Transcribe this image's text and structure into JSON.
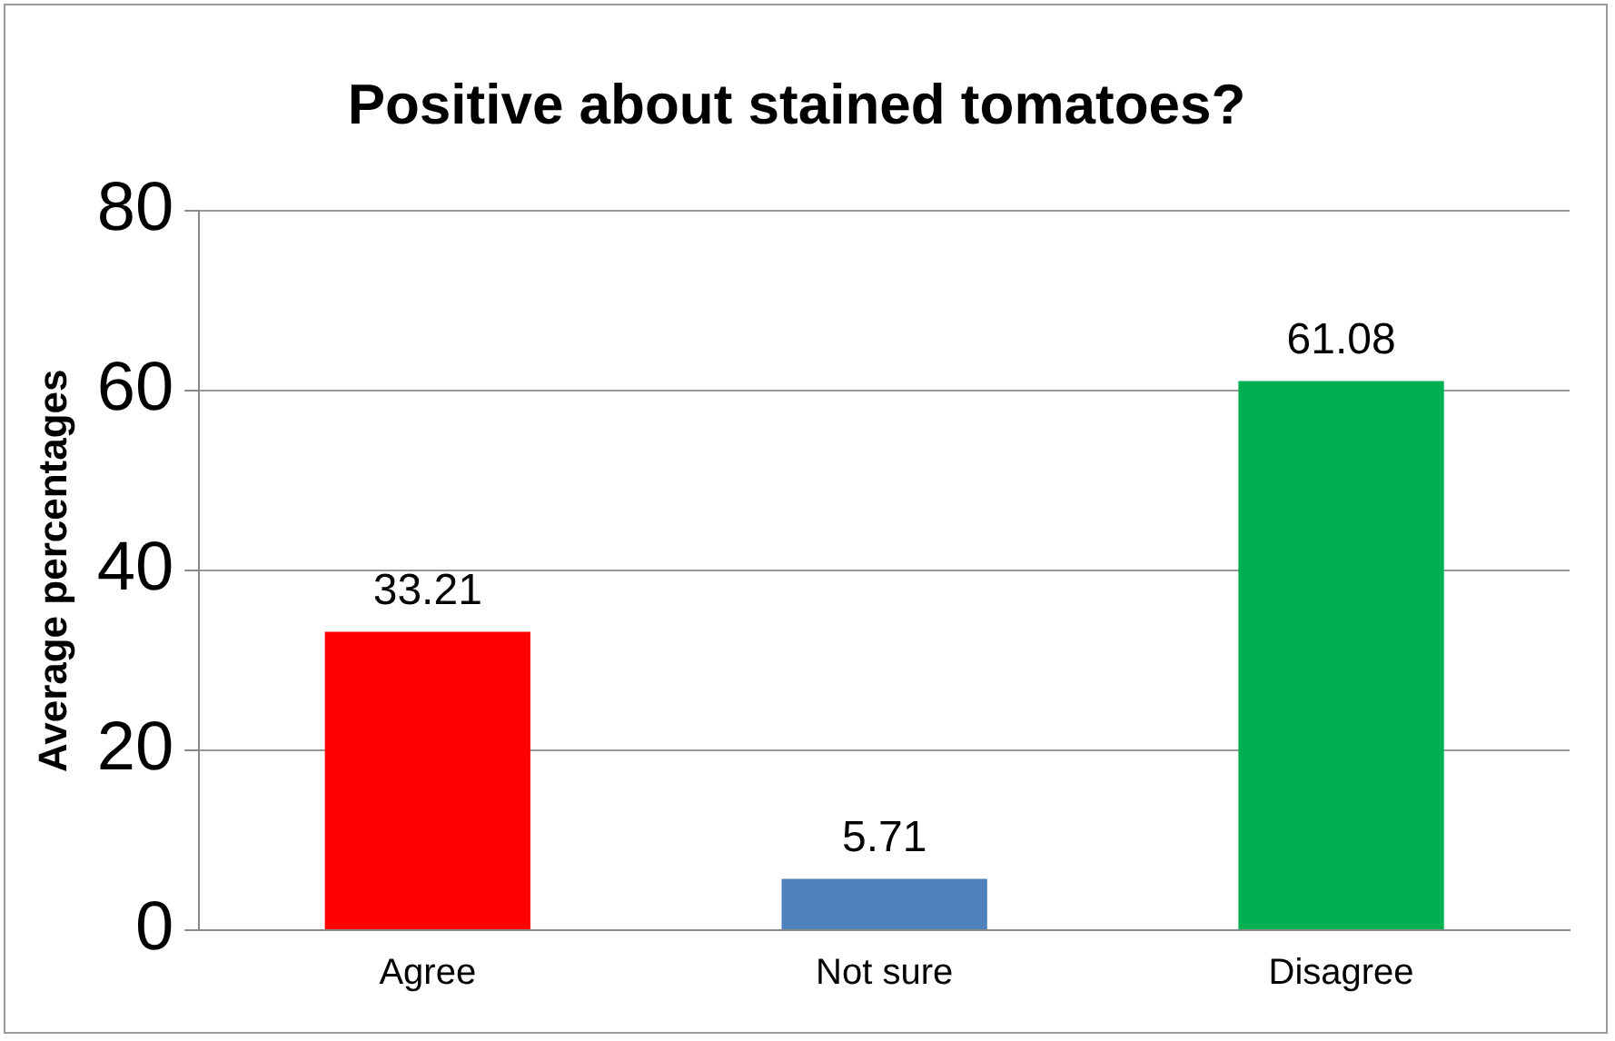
{
  "chart_data": {
    "type": "bar",
    "title": "Positive about stained tomatoes?",
    "ylabel": "Average percentages",
    "categories": [
      "Agree",
      "Not sure",
      "Disagree"
    ],
    "values": [
      33.21,
      5.71,
      61.08
    ],
    "colors": [
      "#ff0000",
      "#4f81bd",
      "#00b050"
    ],
    "ylim": [
      0,
      80
    ],
    "yticks": [
      0,
      20,
      40,
      60,
      80
    ],
    "grid": "y",
    "data_labels": true,
    "legend": false
  }
}
